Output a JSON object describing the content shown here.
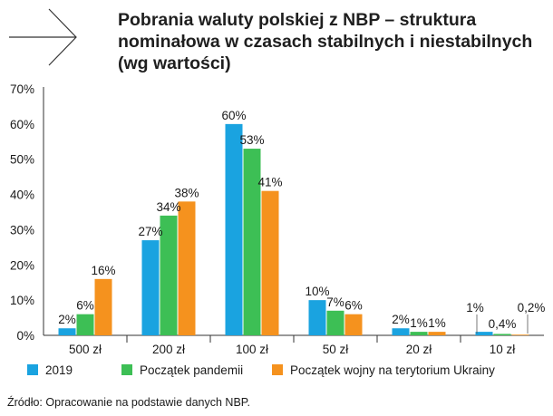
{
  "title_lines": [
    "Pobrania waluty polskiej z NBP – struktura",
    "nominałowa w czasach stabilnych i niestabilnych",
    "(wg wartości)"
  ],
  "source": "Źródło: Opracowanie na podstawie danych NBP.",
  "colors": {
    "series_2019": "#1aa3e0",
    "series_pandemic": "#3dbf55",
    "series_war": "#f5921e",
    "axis": "#333333",
    "grid": "#dddddd"
  },
  "icons": [
    "arrow-right-icon"
  ],
  "chart_data": {
    "type": "bar",
    "title": "Pobrania waluty polskiej z NBP – struktura nominałowa w czasach stabilnych i niestabilnych (wg wartości)",
    "xlabel": "",
    "ylabel": "",
    "ylim": [
      0,
      70
    ],
    "y_ticks": [
      "0%",
      "10%",
      "20%",
      "30%",
      "40%",
      "50%",
      "60%",
      "70%"
    ],
    "y_tick_values": [
      0,
      10,
      20,
      30,
      40,
      50,
      60,
      70
    ],
    "grid": false,
    "legend_position": "bottom",
    "categories": [
      "500 zł",
      "200 zł",
      "100 zł",
      "50 zł",
      "20 zł",
      "10 zł"
    ],
    "series": [
      {
        "name": "2019",
        "values": [
          2,
          27,
          60,
          10,
          2,
          1
        ],
        "labels": [
          "2%",
          "27%",
          "60%",
          "10%",
          "2%",
          "1%"
        ]
      },
      {
        "name": "Początek pandemii",
        "values": [
          6,
          34,
          53,
          7,
          1,
          0.4
        ],
        "labels": [
          "6%",
          "34%",
          "53%",
          "7%",
          "1%",
          "0,4%"
        ]
      },
      {
        "name": "Początek wojny na terytorium Ukrainy",
        "values": [
          16,
          38,
          41,
          6,
          1,
          0.2
        ],
        "labels": [
          "16%",
          "38%",
          "41%",
          "6%",
          "1%",
          "0,2%"
        ]
      }
    ]
  }
}
